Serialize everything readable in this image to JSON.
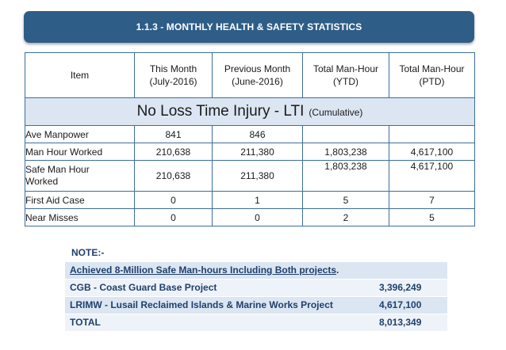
{
  "banner": {
    "title": "1.1.3 - MONTHLY HEALTH & SAFETY STATISTICS"
  },
  "table": {
    "headers": [
      {
        "line1": "Item",
        "line2": ""
      },
      {
        "line1": "This Month",
        "line2": "(July-2016)"
      },
      {
        "line1": "Previous Month",
        "line2": "(June-2016)"
      },
      {
        "line1": "Total Man-Hour",
        "line2": "(YTD)"
      },
      {
        "line1": "Total Man-Hour",
        "line2": "(PTD)"
      }
    ],
    "section": {
      "title": "No Loss Time Injury - LTI",
      "subtitle": "(Cumulative)"
    },
    "rows": [
      {
        "item": "Ave Manpower",
        "this_month": "841",
        "prev_month": "846",
        "ytd": "",
        "ptd": ""
      },
      {
        "item": "Man Hour Worked",
        "this_month": "210,638",
        "prev_month": "211,380",
        "ytd": "1,803,238",
        "ptd": "4,617,100"
      },
      {
        "item_line1": "Safe Man Hour",
        "item_line2": "Worked",
        "this_month": "210,638",
        "prev_month": "211,380",
        "ytd": "1,803,238",
        "ptd": "4,617,100"
      },
      {
        "item": "First Aid Case",
        "this_month": "0",
        "prev_month": "1",
        "ytd": "5",
        "ptd": "7"
      },
      {
        "item": "Near Misses",
        "this_month": "0",
        "prev_month": "0",
        "ytd": "2",
        "ptd": "5"
      }
    ]
  },
  "note": {
    "label": "NOTE:-",
    "achievement": "Achieved  8-Million Safe Man-hours Including Both projects",
    "achievement_suffix": ".",
    "projects": [
      {
        "name": "CGB - Coast Guard Base Project",
        "value": "3,396,249"
      },
      {
        "name": "LRIMW - Lusail Reclaimed Islands & Marine Works Project",
        "value": "4,617,100"
      },
      {
        "name": "TOTAL",
        "value": "8,013,349"
      }
    ]
  },
  "colors": {
    "banner": "#2e5d87",
    "border": "#3b6e9b",
    "highlight": "#dbe6f2",
    "note_text": "#1f3f6b"
  }
}
